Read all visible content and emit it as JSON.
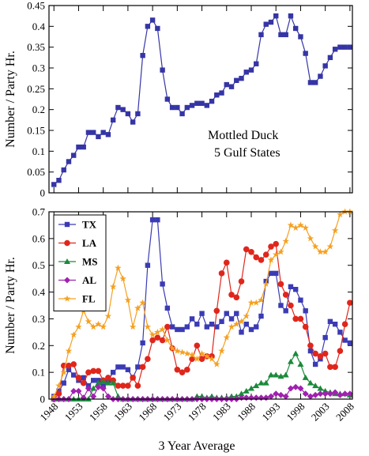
{
  "chart_data": [
    {
      "type": "line",
      "ylabel": "Number / Party Hr.",
      "annotations": [
        "Mottled Duck",
        "5 Gulf States"
      ],
      "x": [
        1948,
        1949,
        1950,
        1951,
        1952,
        1953,
        1954,
        1955,
        1956,
        1957,
        1958,
        1959,
        1960,
        1961,
        1962,
        1963,
        1964,
        1965,
        1966,
        1967,
        1968,
        1969,
        1970,
        1971,
        1972,
        1973,
        1974,
        1975,
        1976,
        1977,
        1978,
        1979,
        1980,
        1981,
        1982,
        1983,
        1984,
        1985,
        1986,
        1987,
        1988,
        1989,
        1990,
        1991,
        1992,
        1993,
        1994,
        1995,
        1996,
        1997,
        1998,
        1999,
        2000,
        2001,
        2002,
        2003,
        2004,
        2005,
        2006,
        2007,
        2008
      ],
      "xlim": [
        1947,
        2008.5
      ],
      "xticks": [
        1948,
        1953,
        1958,
        1963,
        1968,
        1973,
        1978,
        1983,
        1988,
        1993,
        1998,
        2003,
        2008
      ],
      "ylim": [
        0,
        0.45
      ],
      "yticks": [
        0,
        0.05,
        0.1,
        0.15,
        0.2,
        0.25,
        0.3,
        0.35,
        0.4,
        0.45
      ],
      "series": [
        {
          "color": "#3535a5",
          "marker": "square",
          "values": [
            0.02,
            0.03,
            0.055,
            0.075,
            0.09,
            0.11,
            0.11,
            0.145,
            0.145,
            0.135,
            0.145,
            0.14,
            0.175,
            0.205,
            0.2,
            0.19,
            0.17,
            0.19,
            0.33,
            0.4,
            0.415,
            0.395,
            0.295,
            0.225,
            0.205,
            0.205,
            0.19,
            0.205,
            0.21,
            0.215,
            0.215,
            0.21,
            0.22,
            0.235,
            0.24,
            0.26,
            0.255,
            0.27,
            0.275,
            0.29,
            0.295,
            0.31,
            0.38,
            0.405,
            0.41,
            0.425,
            0.38,
            0.38,
            0.425,
            0.395,
            0.375,
            0.335,
            0.265,
            0.265,
            0.28,
            0.305,
            0.325,
            0.345,
            0.35,
            0.35,
            0.35
          ]
        }
      ]
    },
    {
      "type": "line",
      "ylabel": "Number / Party Hr.",
      "xlabel": "3 Year Average",
      "legend": "upper left",
      "x": [
        1948,
        1949,
        1950,
        1951,
        1952,
        1953,
        1954,
        1955,
        1956,
        1957,
        1958,
        1959,
        1960,
        1961,
        1962,
        1963,
        1964,
        1965,
        1966,
        1967,
        1968,
        1969,
        1970,
        1971,
        1972,
        1973,
        1974,
        1975,
        1976,
        1977,
        1978,
        1979,
        1980,
        1981,
        1982,
        1983,
        1984,
        1985,
        1986,
        1987,
        1988,
        1989,
        1990,
        1991,
        1992,
        1993,
        1994,
        1995,
        1996,
        1997,
        1998,
        1999,
        2000,
        2001,
        2002,
        2003,
        2004,
        2005,
        2006,
        2007,
        2008
      ],
      "xlim": [
        1947,
        2008.5
      ],
      "xticks": [
        1948,
        1953,
        1958,
        1963,
        1968,
        1973,
        1978,
        1983,
        1988,
        1993,
        1998,
        2003,
        2008
      ],
      "ylim": [
        0,
        0.7
      ],
      "yticks": [
        0,
        0.1,
        0.2,
        0.3,
        0.4,
        0.5,
        0.6,
        0.7
      ],
      "series": [
        {
          "name": "TX",
          "color": "#3b3bb5",
          "marker": "square",
          "values": [
            0.01,
            0.03,
            0.06,
            0.11,
            0.09,
            0.07,
            0.08,
            0.05,
            0.07,
            0.07,
            0.05,
            0.07,
            0.1,
            0.12,
            0.12,
            0.11,
            0.08,
            0.12,
            0.21,
            0.5,
            0.67,
            0.67,
            0.43,
            0.34,
            0.27,
            0.26,
            0.26,
            0.27,
            0.3,
            0.28,
            0.32,
            0.27,
            0.28,
            0.27,
            0.29,
            0.32,
            0.3,
            0.32,
            0.25,
            0.28,
            0.26,
            0.27,
            0.31,
            0.44,
            0.47,
            0.47,
            0.35,
            0.33,
            0.42,
            0.41,
            0.37,
            0.33,
            0.18,
            0.13,
            0.15,
            0.23,
            0.29,
            0.28,
            0.25,
            0.22,
            0.21
          ]
        },
        {
          "name": "LA",
          "color": "#e0261b",
          "marker": "circle",
          "values": [
            0,
            0.02,
            0.125,
            0.125,
            0.13,
            0.08,
            0.06,
            0.1,
            0.105,
            0.105,
            0.07,
            0.08,
            0.07,
            0.05,
            0.05,
            0.05,
            0.08,
            0.05,
            0.12,
            0.15,
            0.22,
            0.23,
            0.22,
            0.27,
            0.19,
            0.11,
            0.1,
            0.11,
            0.15,
            0.2,
            0.15,
            0.16,
            0.16,
            0.33,
            0.47,
            0.51,
            0.39,
            0.38,
            0.44,
            0.56,
            0.55,
            0.53,
            0.52,
            0.54,
            0.57,
            0.58,
            0.43,
            0.39,
            0.35,
            0.3,
            0.3,
            0.27,
            0.2,
            0.17,
            0.16,
            0.17,
            0.12,
            0.12,
            0.18,
            0.28,
            0.36
          ]
        },
        {
          "name": "MS",
          "color": "#1a8a3a",
          "marker": "triangle",
          "values": [
            0,
            0,
            0,
            0,
            0,
            0,
            0,
            0,
            0.04,
            0.06,
            0.065,
            0.06,
            0.06,
            0.01,
            0,
            0,
            0,
            0,
            0,
            0,
            0,
            0,
            0,
            0,
            0,
            0,
            0,
            0,
            0,
            0.01,
            0.01,
            0.005,
            0.01,
            0.005,
            0.005,
            0.005,
            0.01,
            0.01,
            0.02,
            0.03,
            0.04,
            0.05,
            0.06,
            0.06,
            0.09,
            0.09,
            0.085,
            0.09,
            0.14,
            0.17,
            0.13,
            0.08,
            0.06,
            0.05,
            0.04,
            0.03,
            0.025,
            0.02,
            0.02,
            0.02,
            0.015
          ]
        },
        {
          "name": "AL",
          "color": "#a020b0",
          "marker": "diamond",
          "values": [
            0,
            0,
            0,
            0,
            0.03,
            0.03,
            0.005,
            0.04,
            0.01,
            0.045,
            0.04,
            0.01,
            0,
            0,
            0,
            0,
            0,
            0,
            0,
            0,
            0,
            0,
            0,
            0,
            0,
            0,
            0,
            0,
            0,
            0,
            0,
            0,
            0,
            0,
            0,
            0,
            0,
            0,
            0.005,
            0.005,
            0.005,
            0.005,
            0.005,
            0.005,
            0.01,
            0.02,
            0.015,
            0.01,
            0.04,
            0.045,
            0.04,
            0.02,
            0.01,
            0.015,
            0.02,
            0.02,
            0.02,
            0.025,
            0.015,
            0.02,
            0.02
          ]
        },
        {
          "name": "FL",
          "color": "#f5a020",
          "marker": "star",
          "values": [
            0.01,
            0.05,
            0.1,
            0.18,
            0.24,
            0.27,
            0.33,
            0.29,
            0.27,
            0.28,
            0.27,
            0.31,
            0.42,
            0.49,
            0.45,
            0.37,
            0.27,
            0.34,
            0.36,
            0.27,
            0.24,
            0.25,
            0.26,
            0.22,
            0.19,
            0.18,
            0.175,
            0.17,
            0.165,
            0.15,
            0.17,
            0.16,
            0.15,
            0.13,
            0.18,
            0.23,
            0.27,
            0.28,
            0.29,
            0.31,
            0.36,
            0.36,
            0.37,
            0.43,
            0.52,
            0.54,
            0.55,
            0.59,
            0.65,
            0.64,
            0.65,
            0.64,
            0.6,
            0.57,
            0.55,
            0.55,
            0.57,
            0.63,
            0.69,
            0.7,
            0.7
          ]
        }
      ]
    }
  ]
}
